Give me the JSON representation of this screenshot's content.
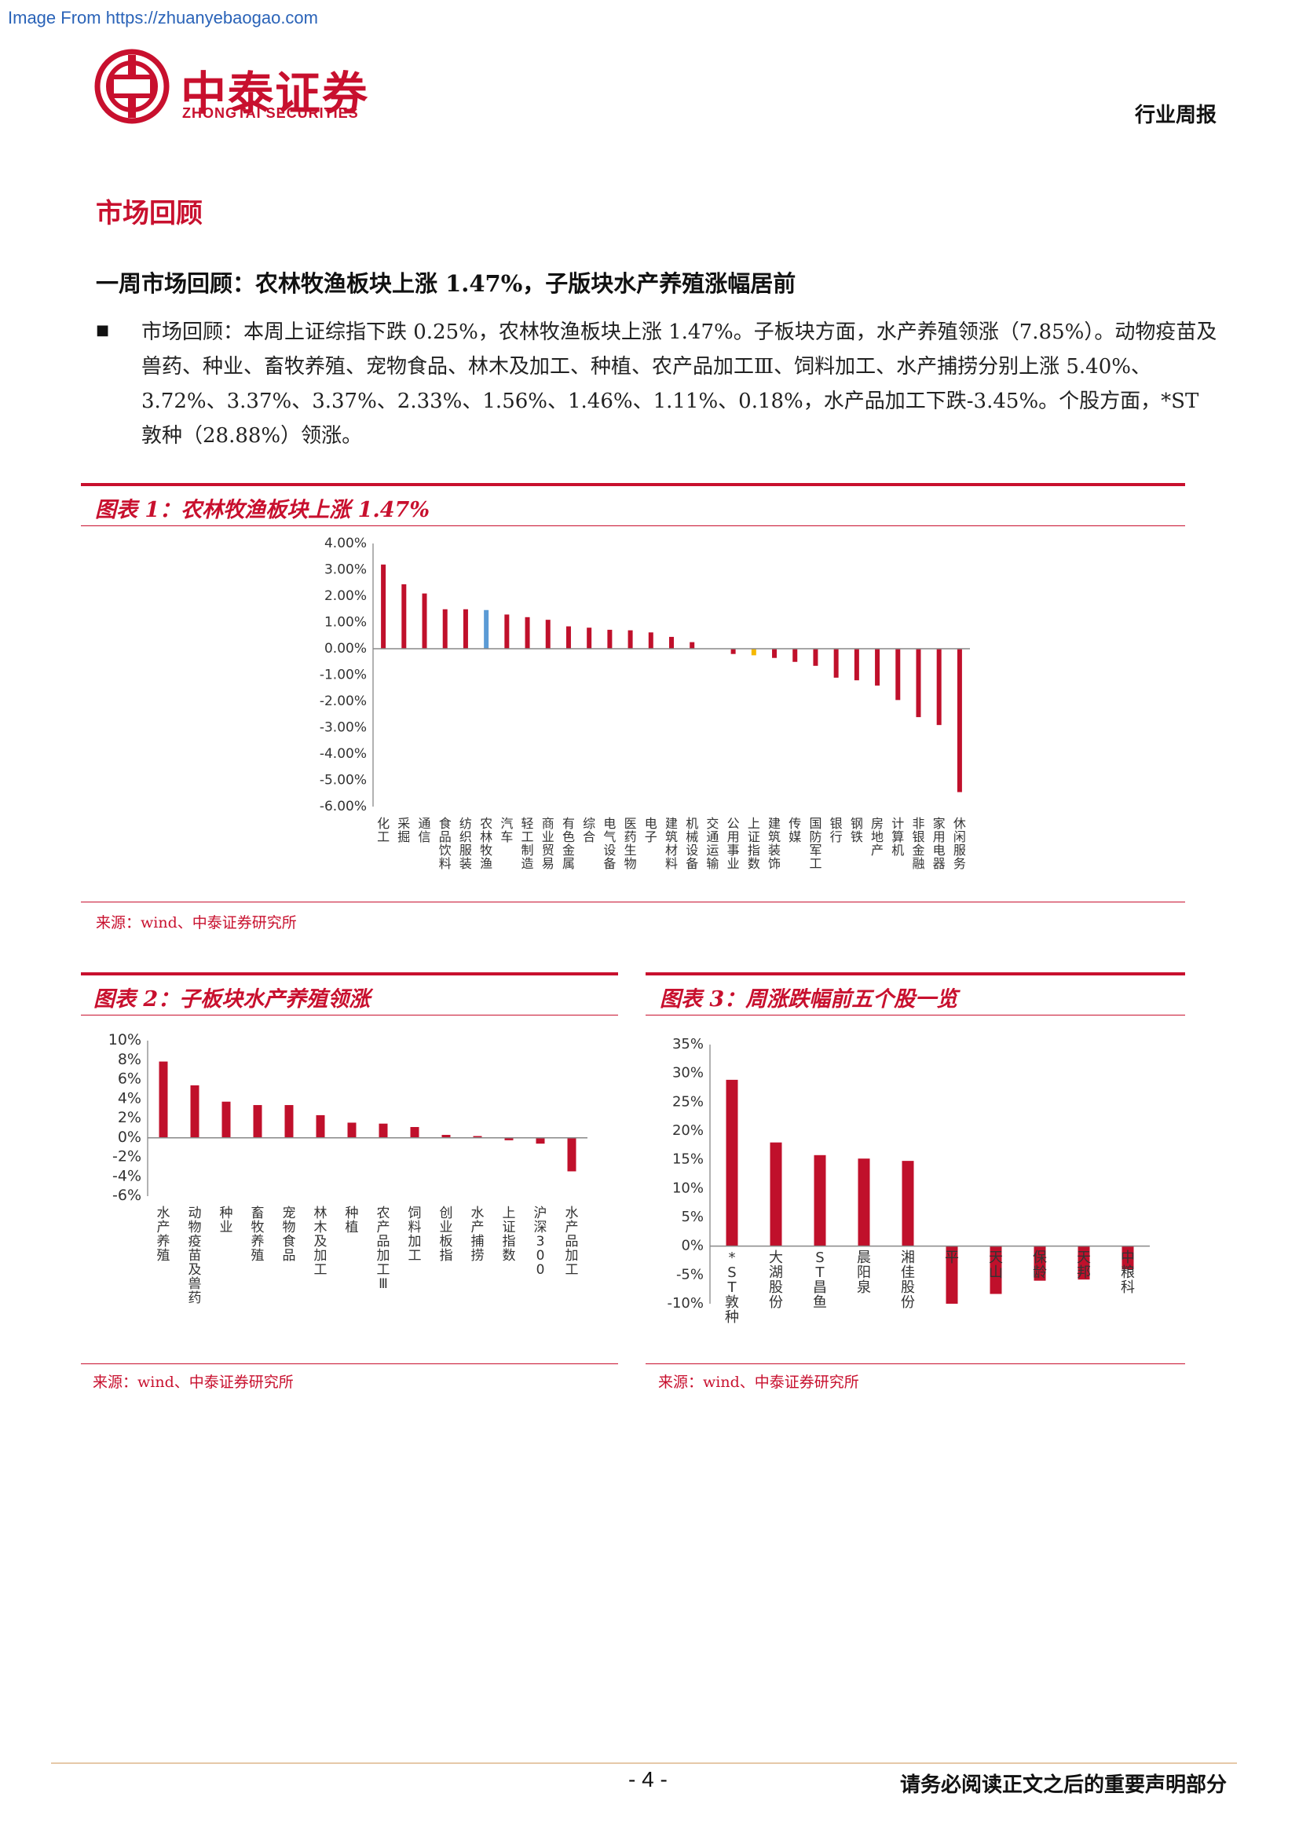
{
  "watermark": "Image From https://zhuanyebaogao.com",
  "header": {
    "company_cn": "中泰证券",
    "company_en": "ZHONGTAI SECURITIES",
    "report_type": "行业周报"
  },
  "section_title": "市场回顾",
  "subheading": "一周市场回顾：农林牧渔板块上涨 1.47%，子版块水产养殖涨幅居前",
  "bullet_symbol": "■",
  "paragraph": "市场回顾：本周上证综指下跌 0.25%，农林牧渔板块上涨 1.47%。子板块方面，水产养殖领涨（7.85%）。动物疫苗及兽药、种业、畜牧养殖、宠物食品、林木及加工、种植、农产品加工Ⅲ、饲料加工、水产捕捞分别上涨 5.40%、3.72%、3.37%、3.37%、2.33%、1.56%、1.46%、1.11%、0.18%，水产品加工下跌-3.45%。个股方面，*ST 敦种（28.88%）领涨。",
  "figure1": {
    "title": "图表 1：农林牧渔板块上涨 1.47%",
    "source": "来源：wind、中泰证券研究所"
  },
  "figure2": {
    "title": "图表 2：子板块水产养殖领涨",
    "source": "来源：wind、中泰证券研究所"
  },
  "figure3": {
    "title": "图表 3：周涨跌幅前五个股一览",
    "source": "来源：wind、中泰证券研究所"
  },
  "footer": {
    "page": "- 4 -",
    "disclaimer": "请务必阅读正文之后的重要声明部分"
  },
  "colors": {
    "brand_red": "#c8102e",
    "bar_red": "#c0102b",
    "highlight_blue": "#5b9bd5",
    "highlight_yellow": "#f5b800"
  },
  "chart_data": [
    {
      "type": "bar",
      "yticks": [
        "4.00%",
        "3.00%",
        "2.00%",
        "1.00%",
        "0.00%",
        "-1.00%",
        "-2.00%",
        "-3.00%",
        "-4.00%",
        "-5.00%",
        "-6.00%"
      ],
      "ylim": [
        -6,
        4
      ],
      "categories": [
        "化工",
        "采掘",
        "通信",
        "食品饮料",
        "纺织服装",
        "农林牧渔",
        "汽车",
        "轻工制造",
        "商业贸易",
        "有色金属",
        "综合",
        "电气设备",
        "医药生物",
        "电子",
        "建筑材料",
        "机械设备",
        "交通运输",
        "公用事业",
        "上证指数",
        "建筑装饰",
        "传媒",
        "国防军工",
        "银行",
        "钢铁",
        "房地产",
        "计算机",
        "非银金融",
        "家用电器",
        "休闲服务"
      ],
      "values": [
        3.2,
        2.45,
        2.1,
        1.5,
        1.5,
        1.47,
        1.3,
        1.2,
        1.1,
        0.85,
        0.8,
        0.72,
        0.7,
        0.62,
        0.45,
        0.25,
        0.0,
        -0.2,
        -0.25,
        -0.35,
        -0.5,
        -0.65,
        -1.1,
        -1.2,
        -1.4,
        -1.95,
        -2.6,
        -2.9,
        -5.45
      ],
      "highlight": {
        "农林牧渔": "blue",
        "上证指数": "yellow"
      }
    },
    {
      "type": "bar",
      "yticks": [
        "10%",
        "8%",
        "6%",
        "4%",
        "2%",
        "0%",
        "-2%",
        "-4%",
        "-6%"
      ],
      "ylim": [
        -6,
        10
      ],
      "categories": [
        "水产养殖",
        "动物疫苗及兽药",
        "种业",
        "畜牧养殖",
        "宠物食品",
        "林木及加工",
        "种植",
        "农产品加工Ⅲ",
        "饲料加工",
        "创业板指",
        "水产捕捞",
        "上证指数",
        "沪深300",
        "水产品加工"
      ],
      "values": [
        7.85,
        5.4,
        3.72,
        3.37,
        3.37,
        2.33,
        1.56,
        1.46,
        1.11,
        0.3,
        0.18,
        -0.25,
        -0.6,
        -3.45
      ]
    },
    {
      "type": "bar",
      "yticks": [
        "35%",
        "30%",
        "25%",
        "20%",
        "15%",
        "10%",
        "5%",
        "0%",
        "-5%",
        "-10%"
      ],
      "ylim": [
        -10,
        35
      ],
      "categories": [
        "*ST敦种",
        "大湖股份",
        "ST昌鱼",
        "晨阳泉",
        "湘佳股份",
        "平",
        "天山",
        "保龄",
        "天邦",
        "中粮科"
      ],
      "values": [
        28.88,
        18.0,
        15.8,
        15.2,
        14.8,
        -10.0,
        -8.3,
        -6.0,
        -5.8,
        -4.0
      ]
    }
  ]
}
